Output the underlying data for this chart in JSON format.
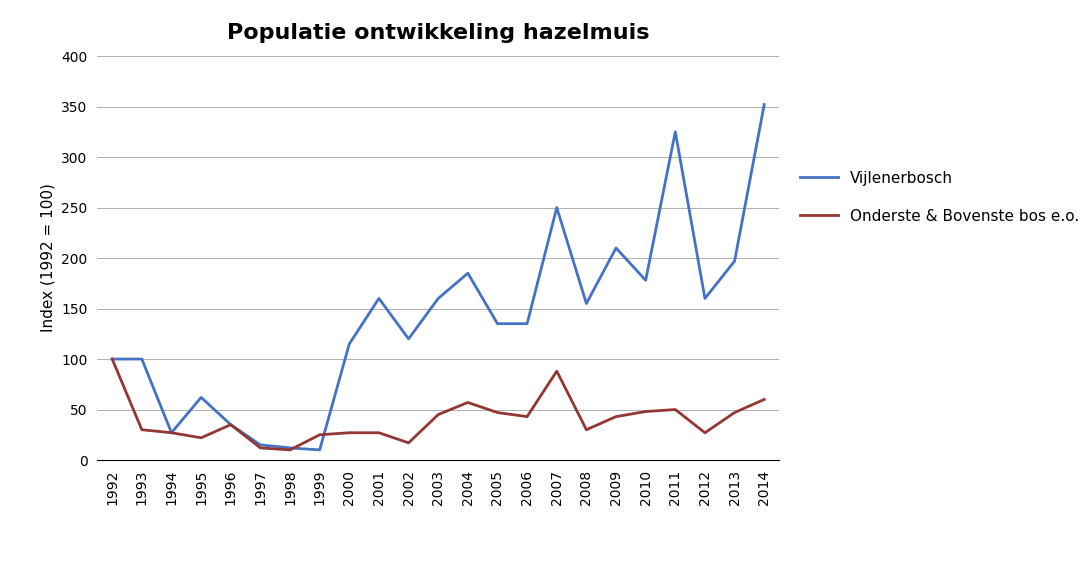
{
  "years": [
    1992,
    1993,
    1994,
    1995,
    1996,
    1997,
    1998,
    1999,
    2000,
    2001,
    2002,
    2003,
    2004,
    2005,
    2006,
    2007,
    2008,
    2009,
    2010,
    2011,
    2012,
    2013,
    2014
  ],
  "vijlenerbosch": [
    100,
    100,
    27,
    62,
    35,
    15,
    12,
    10,
    115,
    160,
    120,
    160,
    185,
    135,
    135,
    250,
    155,
    210,
    178,
    325,
    160,
    197,
    352
  ],
  "onderste_bovenste": [
    100,
    30,
    27,
    22,
    35,
    12,
    10,
    25,
    27,
    27,
    17,
    45,
    57,
    47,
    43,
    88,
    30,
    43,
    48,
    50,
    27,
    47,
    60
  ],
  "vijlenerbosch_color": "#4472C4",
  "onderste_bovenste_color": "#943634",
  "title": "Populatie ontwikkeling hazelmuis",
  "ylabel": "Index (1992 = 100)",
  "ylim": [
    0,
    400
  ],
  "yticks": [
    0,
    50,
    100,
    150,
    200,
    250,
    300,
    350,
    400
  ],
  "legend_vijlenerbosch": "Vijlenerbosch",
  "legend_onderste": "Onderste & Bovenste bos e.o.",
  "title_fontsize": 16,
  "axis_fontsize": 11,
  "tick_fontsize": 10,
  "background_color": "#ffffff",
  "grid_color": "#b0b0b0",
  "border_color": "#000000"
}
